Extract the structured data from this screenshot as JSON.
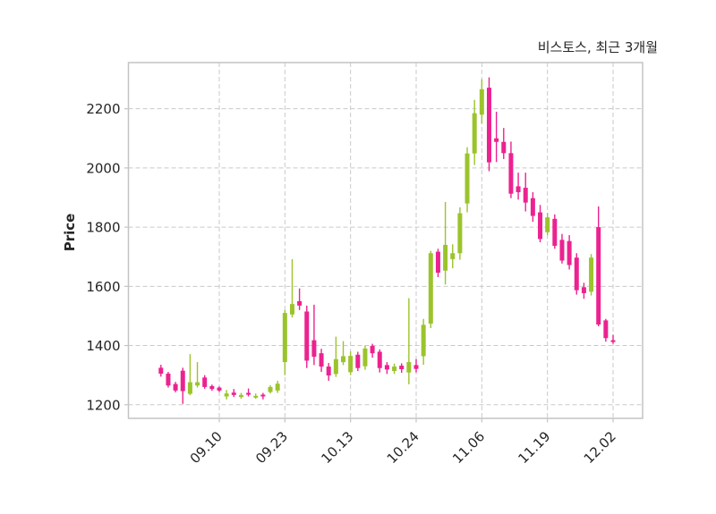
{
  "title": "비스토스, 최근 3개월",
  "ylabel": "Price",
  "chart_data": {
    "type": "candlestick",
    "title": "비스토스, 최근 3개월",
    "xlabel": "",
    "ylabel": "Price",
    "grid": "dashed",
    "legend_position": "none",
    "up_color": "#9bc42c",
    "down_color": "#ec2290",
    "grid_color": "#c9c9c9",
    "axis_color": "#c4c4c4",
    "text_color": "#262626",
    "ylim": [
      1154,
      2356
    ],
    "y_ticks": [
      1200,
      1400,
      1600,
      1800,
      2000,
      2200
    ],
    "x_tick_labels": [
      "09.10",
      "09.23",
      "10.13",
      "10.24",
      "11.06",
      "11.19",
      "12.02"
    ],
    "x_tick_indices": [
      8,
      17,
      26,
      35,
      44,
      53,
      62
    ],
    "candles_format": [
      "open",
      "high",
      "low",
      "close"
    ],
    "candles": [
      [
        1325,
        1335,
        1295,
        1305
      ],
      [
        1305,
        1311,
        1258,
        1265
      ],
      [
        1270,
        1277,
        1242,
        1248
      ],
      [
        1315,
        1325,
        1203,
        1246
      ],
      [
        1237,
        1371,
        1232,
        1276
      ],
      [
        1265,
        1344,
        1258,
        1276
      ],
      [
        1292,
        1300,
        1254,
        1260
      ],
      [
        1263,
        1268,
        1247,
        1253
      ],
      [
        1258,
        1262,
        1243,
        1248
      ],
      [
        1228,
        1250,
        1218,
        1238
      ],
      [
        1241,
        1253,
        1226,
        1233
      ],
      [
        1226,
        1240,
        1220,
        1233
      ],
      [
        1240,
        1255,
        1228,
        1234
      ],
      [
        1224,
        1238,
        1220,
        1230
      ],
      [
        1234,
        1240,
        1218,
        1228
      ],
      [
        1243,
        1266,
        1238,
        1260
      ],
      [
        1248,
        1281,
        1240,
        1271
      ],
      [
        1344,
        1520,
        1300,
        1510
      ],
      [
        1505,
        1692,
        1495,
        1540
      ],
      [
        1550,
        1593,
        1520,
        1535
      ],
      [
        1515,
        1535,
        1324,
        1349
      ],
      [
        1418,
        1538,
        1334,
        1362
      ],
      [
        1374,
        1389,
        1311,
        1329
      ],
      [
        1329,
        1341,
        1281,
        1299
      ],
      [
        1304,
        1430,
        1294,
        1354
      ],
      [
        1344,
        1415,
        1334,
        1364
      ],
      [
        1310,
        1380,
        1300,
        1365
      ],
      [
        1369,
        1379,
        1314,
        1324
      ],
      [
        1330,
        1400,
        1318,
        1390
      ],
      [
        1399,
        1406,
        1359,
        1374
      ],
      [
        1379,
        1387,
        1309,
        1324
      ],
      [
        1334,
        1344,
        1304,
        1319
      ],
      [
        1314,
        1339,
        1304,
        1329
      ],
      [
        1332,
        1340,
        1308,
        1320
      ],
      [
        1309,
        1560,
        1269,
        1344
      ],
      [
        1334,
        1354,
        1309,
        1321
      ],
      [
        1364,
        1490,
        1335,
        1470
      ],
      [
        1474,
        1720,
        1459,
        1712
      ],
      [
        1717,
        1727,
        1631,
        1646
      ],
      [
        1653,
        1885,
        1606,
        1740
      ],
      [
        1692,
        1742,
        1661,
        1712
      ],
      [
        1712,
        1867,
        1690,
        1847
      ],
      [
        1880,
        2070,
        1850,
        2049
      ],
      [
        2049,
        2230,
        2010,
        2185
      ],
      [
        2180,
        2300,
        2150,
        2266
      ],
      [
        2271,
        2306,
        1989,
        2019
      ],
      [
        2100,
        2190,
        2020,
        2088
      ],
      [
        2088,
        2135,
        2030,
        2050
      ],
      [
        2050,
        2089,
        1898,
        1913
      ],
      [
        1938,
        1984,
        1893,
        1918
      ],
      [
        1933,
        1984,
        1853,
        1883
      ],
      [
        1898,
        1918,
        1818,
        1838
      ],
      [
        1850,
        1875,
        1749,
        1760
      ],
      [
        1783,
        1848,
        1773,
        1833
      ],
      [
        1828,
        1843,
        1727,
        1737
      ],
      [
        1757,
        1777,
        1677,
        1687
      ],
      [
        1753,
        1773,
        1657,
        1672
      ],
      [
        1697,
        1712,
        1572,
        1587
      ],
      [
        1597,
        1612,
        1558,
        1577
      ],
      [
        1582,
        1709,
        1569,
        1697
      ],
      [
        1800,
        1870,
        1465,
        1471
      ],
      [
        1485,
        1490,
        1413,
        1425
      ],
      [
        1418,
        1436,
        1406,
        1412
      ]
    ]
  }
}
